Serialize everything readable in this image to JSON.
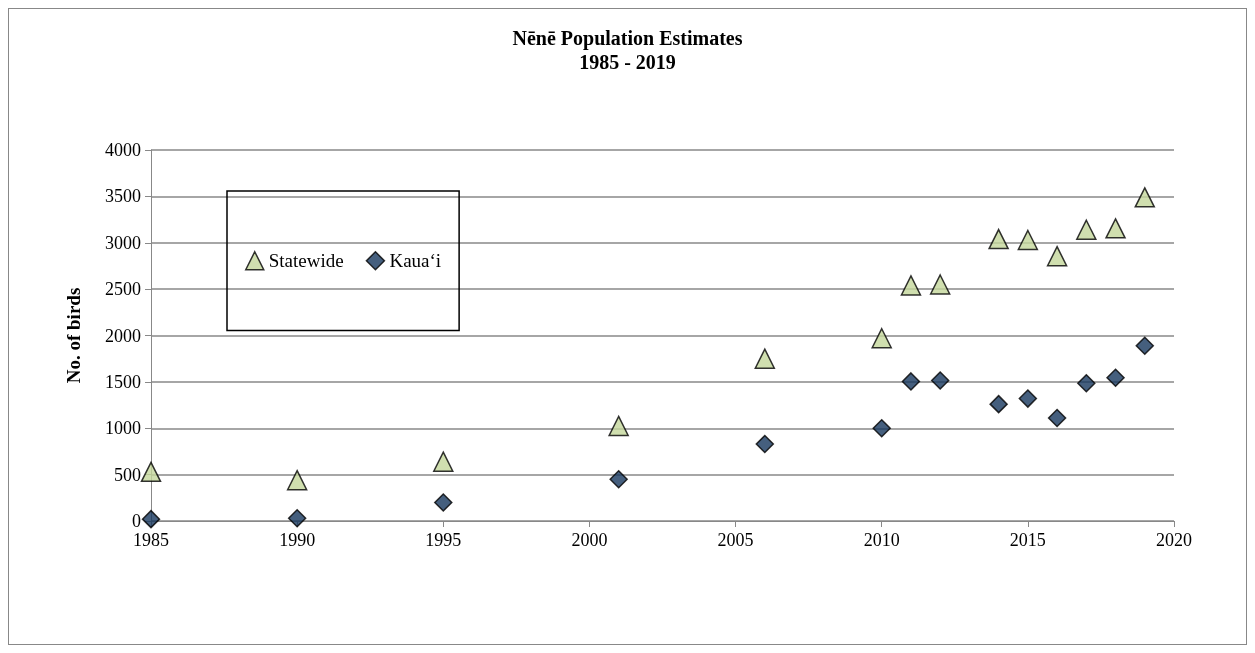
{
  "chart_data": {
    "type": "scatter",
    "title": "Nēnē Population Estimates\n1985 - 2019",
    "ylabel": "No. of birds",
    "x": [
      1985,
      1990,
      1995,
      2001,
      2006,
      2010,
      2011,
      2012,
      2014,
      2015,
      2016,
      2017,
      2018,
      2019
    ],
    "series": [
      {
        "name": "Statewide",
        "color": "#c4d79b",
        "marker": "triangle",
        "values": [
          530,
          440,
          640,
          1025,
          1750,
          1970,
          2540,
          2550,
          3040,
          3030,
          2855,
          3140,
          3155,
          3490
        ]
      },
      {
        "name": "Kaua‘i",
        "color": "#17375e",
        "marker": "diamond",
        "values": [
          20,
          30,
          200,
          450,
          830,
          1000,
          1505,
          1515,
          1260,
          1320,
          1110,
          1485,
          1545,
          1890
        ]
      }
    ],
    "xlim": [
      1985,
      2020
    ],
    "xticks": [
      1985,
      1990,
      1995,
      2000,
      2005,
      2010,
      2015,
      2020
    ],
    "ylim": [
      0,
      4000
    ],
    "yticks": [
      0,
      500,
      1000,
      1500,
      2000,
      2500,
      3000,
      3500,
      4000
    ],
    "grid": "y",
    "legend": "top left"
  }
}
